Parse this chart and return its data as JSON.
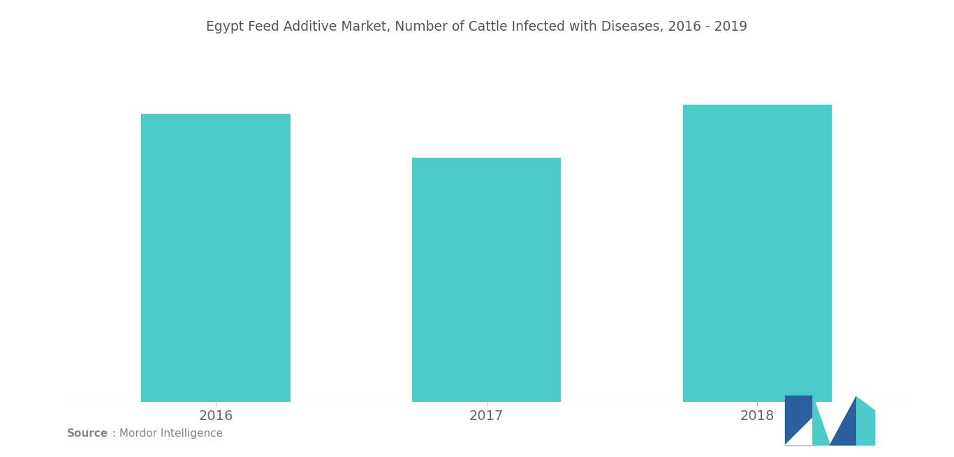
{
  "title": "Egypt Feed Additive Market, Number of Cattle Infected with Diseases, 2016 - 2019",
  "categories": [
    "2016",
    "2017",
    "2018"
  ],
  "values": [
    0.92,
    0.78,
    0.95
  ],
  "bar_color": "#4DCBCB",
  "background_color": "#ffffff",
  "title_fontsize": 13.5,
  "tick_fontsize": 14,
  "source_bold": "Source",
  "source_text": " : Mordor Intelligence",
  "source_fontsize": 11,
  "ylim": [
    0,
    1.05
  ],
  "logo_dark": "#2B5F9E",
  "logo_teal": "#4DCBCB"
}
